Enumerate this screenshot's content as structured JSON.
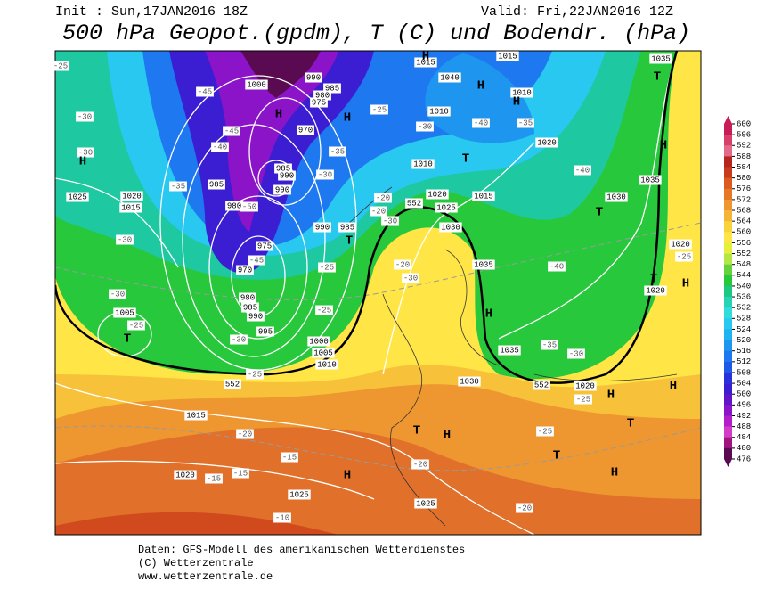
{
  "header": {
    "init": "Init : Sun,17JAN2016 18Z",
    "valid": "Valid: Fri,22JAN2016 12Z",
    "title": "500 hPa Geopot.(gpdm), T (C) und Bodendr. (hPa)"
  },
  "colorbar": {
    "ticks": [
      600,
      596,
      592,
      588,
      584,
      580,
      576,
      572,
      568,
      564,
      560,
      556,
      552,
      548,
      544,
      540,
      536,
      532,
      528,
      524,
      520,
      516,
      512,
      508,
      504,
      500,
      496,
      492,
      488,
      484,
      480,
      476
    ],
    "colors": [
      "#c71c55",
      "#d8406a",
      "#e46a8a",
      "#b4261e",
      "#c83c1e",
      "#dc5a1e",
      "#e67828",
      "#f09630",
      "#f5b437",
      "#fad23c",
      "#ffe646",
      "#e6f03c",
      "#b4e646",
      "#64d23c",
      "#28c83c",
      "#1ec882",
      "#28d2b4",
      "#32dcdc",
      "#28c8f0",
      "#1eb4f0",
      "#1e96f0",
      "#1e78f0",
      "#1e5ae6",
      "#2832dc",
      "#3c1ed2",
      "#6414c8",
      "#8c14c8",
      "#b41ec8",
      "#d23cc8",
      "#a0147d",
      "#5a0a50"
    ]
  },
  "map": {
    "isobar_labels": [
      1000,
      990,
      985,
      980,
      975,
      970,
      985,
      990,
      990,
      985,
      980,
      975,
      970,
      980,
      985,
      990,
      995,
      1000,
      1005,
      1010,
      990,
      985,
      1025,
      1020,
      1015,
      1005,
      1015,
      1020,
      1025,
      1025,
      1015,
      1040,
      1015,
      1035,
      1010,
      1010,
      1020,
      1010,
      1020,
      1025,
      1015,
      1030,
      1035,
      1030,
      1035,
      1020,
      1020,
      1035,
      1030,
      1020
    ],
    "temperature_labels": [
      -25,
      -30,
      -30,
      -45,
      -45,
      -40,
      -35,
      -50,
      -45,
      -30,
      -30,
      -25,
      -30,
      -25,
      -20,
      -15,
      -15,
      -15,
      -10,
      -30,
      -35,
      -25,
      -30,
      -40,
      -35,
      -40,
      -40,
      -35,
      -30,
      -30,
      -20,
      -20,
      -20,
      -30,
      -25,
      -25,
      -25,
      -25,
      -25,
      -20,
      -20
    ],
    "contour_552_labels": [
      552,
      552,
      552
    ],
    "pressure_centers": [
      "H",
      "T",
      "H",
      "H",
      "T",
      "H",
      "H",
      "H",
      "T",
      "H",
      "T",
      "H",
      "T",
      "H",
      "T",
      "H",
      "T",
      "T",
      "H",
      "H",
      "H",
      "H",
      "T"
    ]
  },
  "footer": {
    "line1": "Daten: GFS-Modell des amerikanischen Wetterdienstes",
    "line2": "(C) Wetterzentrale",
    "line3": "www.wetterzentrale.de"
  }
}
